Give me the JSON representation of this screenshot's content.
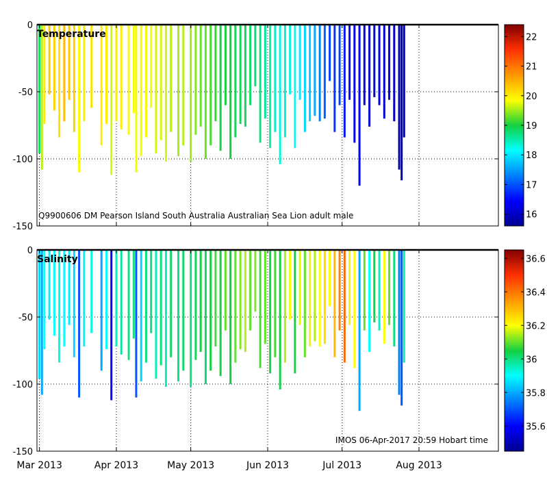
{
  "chart_data": [
    {
      "type": "heatmap",
      "title": "Temperature",
      "annotation": "Q9900606 DM Pearson Island South Australia Australian Sea Lion adult male",
      "xlabel": "",
      "ylabel": "",
      "x_ticks": [
        "Mar 2013",
        "Apr 2013",
        "May 2013",
        "Jun 2013",
        "Jul 2013",
        "Aug 2013"
      ],
      "x_range": [
        "2013-02-28",
        "2013-09-02"
      ],
      "y_ticks": [
        0,
        -50,
        -100,
        -150
      ],
      "ylim": [
        -150,
        0
      ],
      "colorbar": {
        "min": 15.6,
        "max": 22.4,
        "ticks": [
          16,
          17,
          18,
          19,
          20,
          21,
          22
        ]
      },
      "profiles": [
        {
          "day": 1,
          "depth": 96,
          "value": 18.8
        },
        {
          "day": 2,
          "depth": 108,
          "value": 19.6
        },
        {
          "day": 3,
          "depth": 74,
          "value": 20.0
        },
        {
          "day": 5,
          "depth": 52,
          "value": 20.3
        },
        {
          "day": 7,
          "depth": 64,
          "value": 20.2
        },
        {
          "day": 9,
          "depth": 84,
          "value": 20.1
        },
        {
          "day": 11,
          "depth": 72,
          "value": 20.4
        },
        {
          "day": 13,
          "depth": 56,
          "value": 20.3
        },
        {
          "day": 15,
          "depth": 80,
          "value": 20.2
        },
        {
          "day": 17,
          "depth": 110,
          "value": 19.9
        },
        {
          "day": 19,
          "depth": 72,
          "value": 20.0
        },
        {
          "day": 22,
          "depth": 62,
          "value": 20.1
        },
        {
          "day": 26,
          "depth": 90,
          "value": 20.0
        },
        {
          "day": 28,
          "depth": 74,
          "value": 20.0
        },
        {
          "day": 30,
          "depth": 112,
          "value": 19.7
        },
        {
          "day": 32,
          "depth": 72,
          "value": 20.0
        },
        {
          "day": 34,
          "depth": 78,
          "value": 20.0
        },
        {
          "day": 37,
          "depth": 82,
          "value": 19.9
        },
        {
          "day": 39,
          "depth": 66,
          "value": 19.8
        },
        {
          "day": 40,
          "depth": 110,
          "value": 19.8
        },
        {
          "day": 42,
          "depth": 98,
          "value": 19.8
        },
        {
          "day": 44,
          "depth": 84,
          "value": 19.8
        },
        {
          "day": 46,
          "depth": 62,
          "value": 19.9
        },
        {
          "day": 48,
          "depth": 96,
          "value": 19.7
        },
        {
          "day": 50,
          "depth": 86,
          "value": 19.7
        },
        {
          "day": 52,
          "depth": 102,
          "value": 19.7
        },
        {
          "day": 54,
          "depth": 80,
          "value": 19.6
        },
        {
          "day": 57,
          "depth": 98,
          "value": 19.5
        },
        {
          "day": 59,
          "depth": 90,
          "value": 19.6
        },
        {
          "day": 62,
          "depth": 102,
          "value": 19.5
        },
        {
          "day": 64,
          "depth": 82,
          "value": 19.4
        },
        {
          "day": 66,
          "depth": 76,
          "value": 19.3
        },
        {
          "day": 68,
          "depth": 100,
          "value": 19.3
        },
        {
          "day": 70,
          "depth": 90,
          "value": 19.2
        },
        {
          "day": 72,
          "depth": 72,
          "value": 19.1
        },
        {
          "day": 74,
          "depth": 94,
          "value": 19.0
        },
        {
          "day": 76,
          "depth": 60,
          "value": 19.0
        },
        {
          "day": 78,
          "depth": 100,
          "value": 19.0
        },
        {
          "day": 80,
          "depth": 84,
          "value": 18.9
        },
        {
          "day": 82,
          "depth": 74,
          "value": 18.9
        },
        {
          "day": 84,
          "depth": 76,
          "value": 18.9
        },
        {
          "day": 86,
          "depth": 60,
          "value": 18.8
        },
        {
          "day": 88,
          "depth": 46,
          "value": 18.8
        },
        {
          "day": 90,
          "depth": 88,
          "value": 18.7
        },
        {
          "day": 92,
          "depth": 70,
          "value": 18.6
        },
        {
          "day": 94,
          "depth": 92,
          "value": 18.5
        },
        {
          "day": 96,
          "depth": 80,
          "value": 18.4
        },
        {
          "day": 98,
          "depth": 104,
          "value": 18.3
        },
        {
          "day": 100,
          "depth": 84,
          "value": 18.4
        },
        {
          "day": 102,
          "depth": 52,
          "value": 18.3
        },
        {
          "day": 104,
          "depth": 92,
          "value": 18.2
        },
        {
          "day": 106,
          "depth": 56,
          "value": 18.0
        },
        {
          "day": 108,
          "depth": 80,
          "value": 17.9
        },
        {
          "day": 110,
          "depth": 72,
          "value": 17.8
        },
        {
          "day": 112,
          "depth": 68,
          "value": 17.6
        },
        {
          "day": 114,
          "depth": 72,
          "value": 17.3
        },
        {
          "day": 116,
          "depth": 70,
          "value": 17.1
        },
        {
          "day": 118,
          "depth": 42,
          "value": 16.9
        },
        {
          "day": 120,
          "depth": 80,
          "value": 16.8
        },
        {
          "day": 122,
          "depth": 60,
          "value": 16.9
        },
        {
          "day": 124,
          "depth": 84,
          "value": 16.6
        },
        {
          "day": 126,
          "depth": 56,
          "value": 16.5
        },
        {
          "day": 128,
          "depth": 88,
          "value": 16.4
        },
        {
          "day": 130,
          "depth": 120,
          "value": 16.3
        },
        {
          "day": 132,
          "depth": 60,
          "value": 16.2
        },
        {
          "day": 134,
          "depth": 76,
          "value": 16.1
        },
        {
          "day": 136,
          "depth": 54,
          "value": 16.0
        },
        {
          "day": 138,
          "depth": 60,
          "value": 16.3
        },
        {
          "day": 140,
          "depth": 70,
          "value": 16.1
        },
        {
          "day": 142,
          "depth": 56,
          "value": 16.0
        },
        {
          "day": 144,
          "depth": 72,
          "value": 15.9
        },
        {
          "day": 146,
          "depth": 108,
          "value": 15.8
        },
        {
          "day": 147,
          "depth": 116,
          "value": 15.8
        },
        {
          "day": 148,
          "depth": 84,
          "value": 16.0
        }
      ]
    },
    {
      "type": "heatmap",
      "title": "Salinity",
      "annotation": "IMOS 06-Apr-2017 20:59 Hobart time",
      "xlabel": "",
      "ylabel": "",
      "x_ticks": [
        "Mar 2013",
        "Apr 2013",
        "May 2013",
        "Jun 2013",
        "Jul 2013",
        "Aug 2013"
      ],
      "x_range": [
        "2013-02-28",
        "2013-09-02"
      ],
      "y_ticks": [
        0,
        -50,
        -100,
        -150
      ],
      "ylim": [
        -150,
        0
      ],
      "colorbar": {
        "min": 35.45,
        "max": 36.65,
        "ticks": [
          35.6,
          35.8,
          36,
          36.2,
          36.4,
          36.6
        ]
      },
      "profiles": [
        {
          "day": 1,
          "depth": 96,
          "value": 35.85
        },
        {
          "day": 2,
          "depth": 108,
          "value": 35.8
        },
        {
          "day": 3,
          "depth": 74,
          "value": 35.9
        },
        {
          "day": 5,
          "depth": 52,
          "value": 35.88
        },
        {
          "day": 7,
          "depth": 64,
          "value": 35.9
        },
        {
          "day": 9,
          "depth": 84,
          "value": 35.92
        },
        {
          "day": 11,
          "depth": 72,
          "value": 35.9
        },
        {
          "day": 13,
          "depth": 56,
          "value": 35.88
        },
        {
          "day": 15,
          "depth": 80,
          "value": 35.86
        },
        {
          "day": 17,
          "depth": 110,
          "value": 35.7
        },
        {
          "day": 19,
          "depth": 72,
          "value": 35.88
        },
        {
          "day": 22,
          "depth": 62,
          "value": 35.92
        },
        {
          "day": 26,
          "depth": 90,
          "value": 35.8
        },
        {
          "day": 28,
          "depth": 74,
          "value": 35.9
        },
        {
          "day": 30,
          "depth": 112,
          "value": 35.6
        },
        {
          "day": 32,
          "depth": 72,
          "value": 35.95
        },
        {
          "day": 34,
          "depth": 78,
          "value": 35.98
        },
        {
          "day": 37,
          "depth": 82,
          "value": 36.0
        },
        {
          "day": 39,
          "depth": 66,
          "value": 36.0
        },
        {
          "day": 40,
          "depth": 110,
          "value": 35.7
        },
        {
          "day": 42,
          "depth": 98,
          "value": 35.85
        },
        {
          "day": 44,
          "depth": 84,
          "value": 36.0
        },
        {
          "day": 46,
          "depth": 62,
          "value": 36.0
        },
        {
          "day": 48,
          "depth": 96,
          "value": 35.95
        },
        {
          "day": 50,
          "depth": 86,
          "value": 36.0
        },
        {
          "day": 52,
          "depth": 102,
          "value": 35.95
        },
        {
          "day": 54,
          "depth": 80,
          "value": 36.02
        },
        {
          "day": 57,
          "depth": 98,
          "value": 36.0
        },
        {
          "day": 59,
          "depth": 90,
          "value": 36.02
        },
        {
          "day": 62,
          "depth": 102,
          "value": 36.0
        },
        {
          "day": 64,
          "depth": 82,
          "value": 36.03
        },
        {
          "day": 66,
          "depth": 76,
          "value": 36.05
        },
        {
          "day": 68,
          "depth": 100,
          "value": 36.02
        },
        {
          "day": 70,
          "depth": 90,
          "value": 36.05
        },
        {
          "day": 72,
          "depth": 72,
          "value": 36.08
        },
        {
          "day": 74,
          "depth": 94,
          "value": 36.05
        },
        {
          "day": 76,
          "depth": 60,
          "value": 36.1
        },
        {
          "day": 78,
          "depth": 100,
          "value": 36.05
        },
        {
          "day": 80,
          "depth": 84,
          "value": 36.1
        },
        {
          "day": 82,
          "depth": 74,
          "value": 36.12
        },
        {
          "day": 84,
          "depth": 76,
          "value": 36.15
        },
        {
          "day": 86,
          "depth": 60,
          "value": 36.1
        },
        {
          "day": 88,
          "depth": 46,
          "value": 36.12
        },
        {
          "day": 90,
          "depth": 88,
          "value": 36.08
        },
        {
          "day": 92,
          "depth": 70,
          "value": 36.1
        },
        {
          "day": 94,
          "depth": 92,
          "value": 36.05
        },
        {
          "day": 96,
          "depth": 80,
          "value": 36.08
        },
        {
          "day": 98,
          "depth": 104,
          "value": 36.05
        },
        {
          "day": 100,
          "depth": 84,
          "value": 36.15
        },
        {
          "day": 102,
          "depth": 52,
          "value": 36.2
        },
        {
          "day": 104,
          "depth": 92,
          "value": 36.05
        },
        {
          "day": 106,
          "depth": 56,
          "value": 36.18
        },
        {
          "day": 108,
          "depth": 80,
          "value": 36.1
        },
        {
          "day": 110,
          "depth": 72,
          "value": 36.22
        },
        {
          "day": 112,
          "depth": 68,
          "value": 36.15
        },
        {
          "day": 114,
          "depth": 72,
          "value": 36.2
        },
        {
          "day": 116,
          "depth": 70,
          "value": 36.25
        },
        {
          "day": 118,
          "depth": 42,
          "value": 36.2
        },
        {
          "day": 120,
          "depth": 80,
          "value": 36.3
        },
        {
          "day": 122,
          "depth": 60,
          "value": 36.38
        },
        {
          "day": 124,
          "depth": 84,
          "value": 36.42
        },
        {
          "day": 126,
          "depth": 56,
          "value": 36.22
        },
        {
          "day": 128,
          "depth": 88,
          "value": 36.2
        },
        {
          "day": 130,
          "depth": 120,
          "value": 35.8
        },
        {
          "day": 132,
          "depth": 60,
          "value": 36.1
        },
        {
          "day": 134,
          "depth": 76,
          "value": 35.9
        },
        {
          "day": 136,
          "depth": 54,
          "value": 36.05
        },
        {
          "day": 138,
          "depth": 60,
          "value": 35.95
        },
        {
          "day": 140,
          "depth": 70,
          "value": 36.2
        },
        {
          "day": 142,
          "depth": 56,
          "value": 36.1
        },
        {
          "day": 144,
          "depth": 72,
          "value": 36.0
        },
        {
          "day": 146,
          "depth": 108,
          "value": 35.75
        },
        {
          "day": 147,
          "depth": 116,
          "value": 35.7
        },
        {
          "day": 148,
          "depth": 84,
          "value": 35.95
        }
      ]
    }
  ]
}
